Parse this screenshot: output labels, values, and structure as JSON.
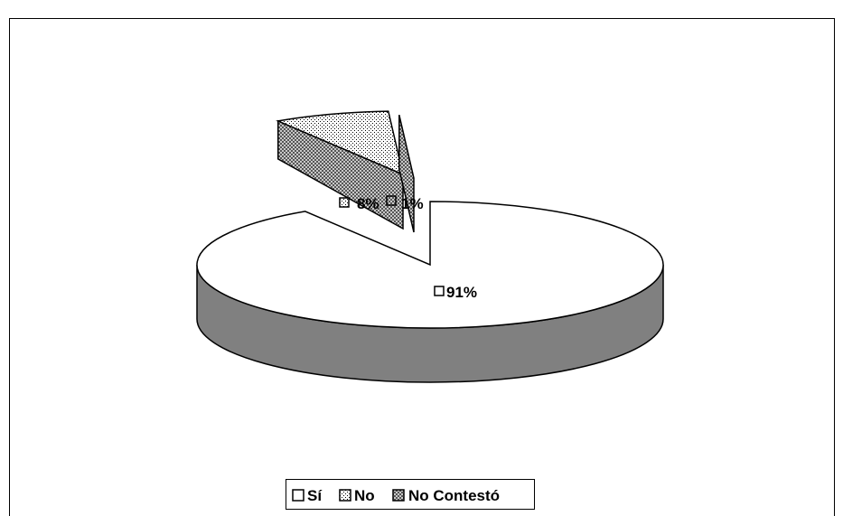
{
  "chart_data": {
    "type": "pie",
    "categories": [
      "Sí",
      "No",
      "No Contestó"
    ],
    "values": [
      91,
      8,
      1
    ],
    "value_labels": [
      "91%",
      "8%",
      "1%"
    ],
    "legend_position": "bottom",
    "title": "",
    "colors": {
      "Sí": "#ffffff",
      "No": "#ffffff",
      "No Contestó": "#808080",
      "side": "#808080",
      "edge": "#000000"
    }
  }
}
